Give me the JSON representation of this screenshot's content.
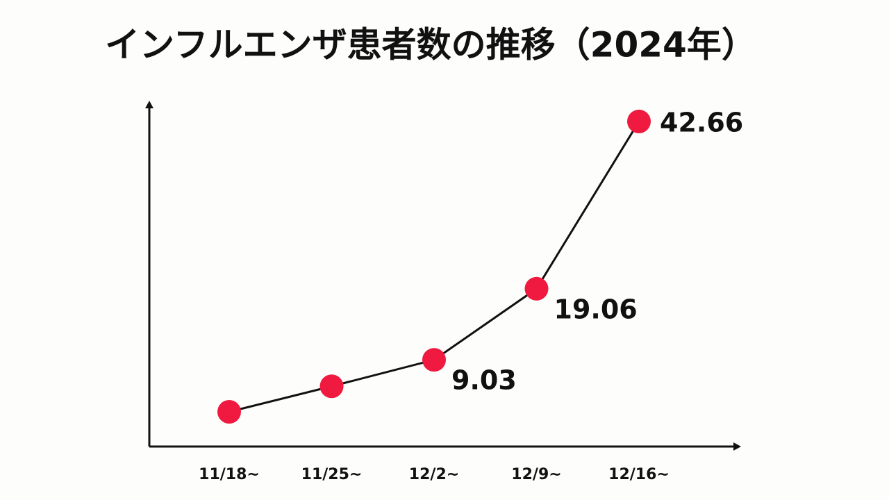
{
  "chart_data": {
    "type": "line",
    "title": "インフルエンザ患者数の推移（2024年）",
    "categories": [
      "11/18~",
      "11/25~",
      "12/2~",
      "12/9~",
      "12/16~"
    ],
    "values": [
      1.7,
      5.3,
      9.03,
      19.06,
      42.66
    ],
    "value_labels": [
      null,
      null,
      "9.03",
      "19.06",
      "42.66"
    ],
    "color": "#f0193f",
    "line_color": "#111111",
    "ylim": [
      -3.2,
      45.1
    ]
  }
}
